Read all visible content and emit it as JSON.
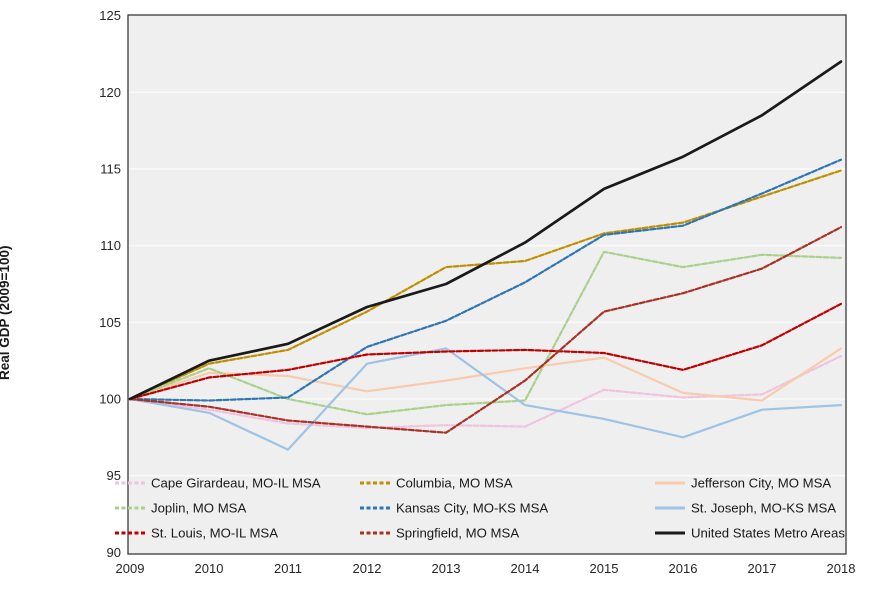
{
  "chart_data": {
    "type": "line",
    "title": "",
    "xlabel": "",
    "ylabel": "Real GDP (2009=100)",
    "x": [
      2009,
      2010,
      2011,
      2012,
      2013,
      2014,
      2015,
      2016,
      2017,
      2018
    ],
    "ylim": [
      90,
      125
    ],
    "yticks": [
      90,
      95,
      100,
      105,
      110,
      115,
      120,
      125
    ],
    "grid": "horizontal",
    "legend_position": "inside-bottom",
    "plot_bg": "#f0efef",
    "grid_color": "#fafafa",
    "border_color": "#3a3a3a",
    "tick_color": "#262626",
    "series": [
      {
        "name": "Cape Girardeau, MO-IL MSA",
        "color": "#f1c2e0",
        "dash": true,
        "values": [
          100,
          99.3,
          98.4,
          98.1,
          98.3,
          98.2,
          100.6,
          100.1,
          100.3,
          102.8
        ]
      },
      {
        "name": "Columbia, MO MSA",
        "color": "#bf8f00",
        "dash": true,
        "values": [
          100,
          102.3,
          103.2,
          105.7,
          108.6,
          109.0,
          110.8,
          111.5,
          113.2,
          114.9
        ]
      },
      {
        "name": "Jefferson City, MO MSA",
        "color": "#f8cbad",
        "dash": false,
        "values": [
          100,
          101.7,
          101.5,
          100.5,
          101.2,
          102.0,
          102.7,
          100.4,
          99.9,
          103.3
        ]
      },
      {
        "name": "Joplin, MO MSA",
        "color": "#a9d18e",
        "dash": true,
        "values": [
          100,
          102.0,
          100.0,
          99.0,
          99.6,
          99.9,
          109.6,
          108.6,
          109.4,
          109.2
        ]
      },
      {
        "name": "Kansas City, MO-KS MSA",
        "color": "#2e75b6",
        "dash": true,
        "values": [
          100,
          99.9,
          100.1,
          103.4,
          105.1,
          107.6,
          110.7,
          111.3,
          113.4,
          115.6
        ]
      },
      {
        "name": "St. Joseph, MO-KS MSA",
        "color": "#9dc3e6",
        "dash": false,
        "values": [
          100,
          99.1,
          96.7,
          102.3,
          103.3,
          99.6,
          98.7,
          97.5,
          99.3,
          99.6
        ]
      },
      {
        "name": "St. Louis, MO-IL MSA",
        "color": "#c00000",
        "dash": true,
        "values": [
          100,
          101.4,
          101.9,
          102.9,
          103.1,
          103.2,
          103.0,
          101.9,
          103.5,
          106.2
        ]
      },
      {
        "name": "Springfield, MO MSA",
        "color": "#a93226",
        "dash": true,
        "values": [
          100,
          99.5,
          98.6,
          98.2,
          97.8,
          101.2,
          105.7,
          106.9,
          108.5,
          111.2
        ]
      },
      {
        "name": "United States Metro Areas",
        "color": "#1a1a1a",
        "dash": false,
        "values": [
          100,
          102.5,
          103.6,
          106.0,
          107.5,
          110.2,
          113.7,
          115.8,
          118.5,
          122.0
        ]
      }
    ]
  }
}
